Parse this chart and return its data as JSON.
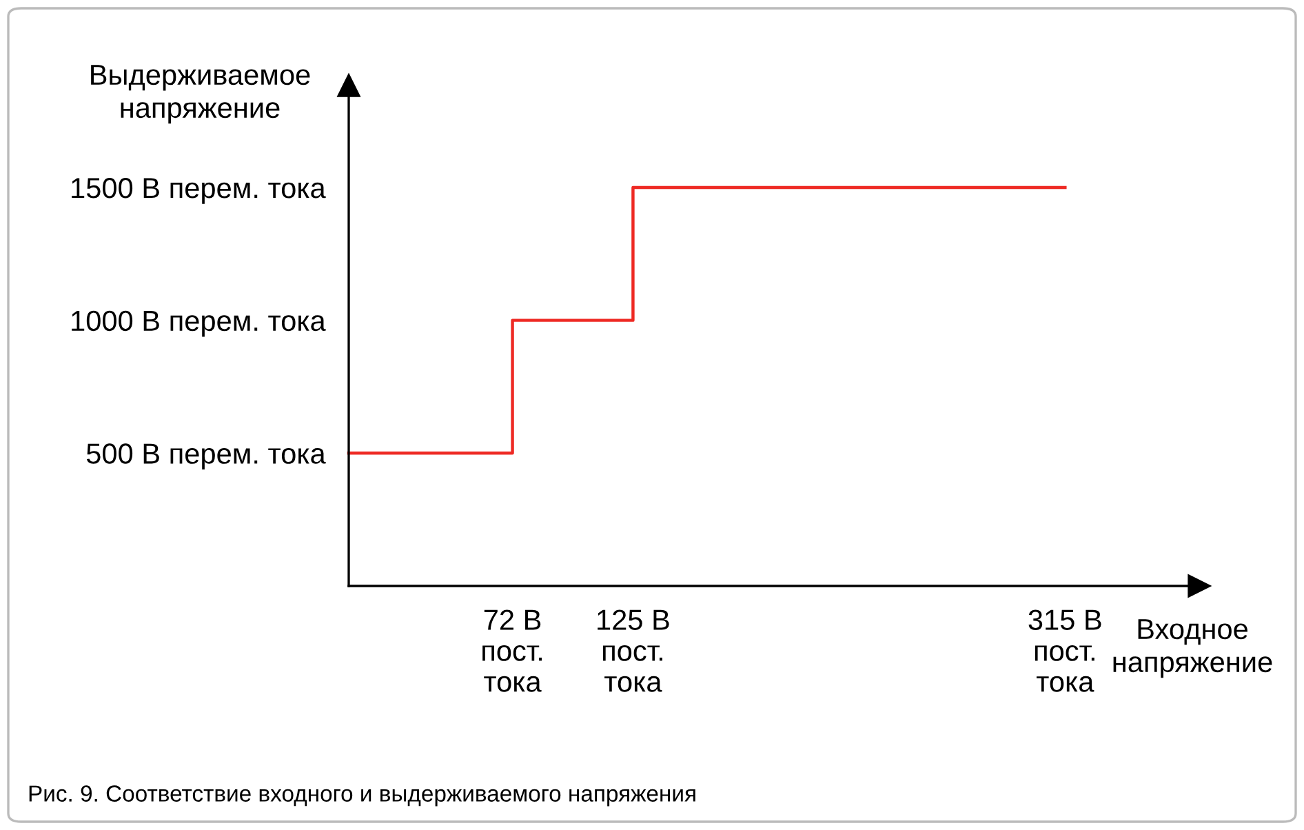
{
  "chart_data": {
    "type": "step",
    "x": [
      0,
      72,
      125,
      315
    ],
    "series": [
      {
        "color": "#ee2a24",
        "values": [
          500,
          1000,
          1500,
          1500
        ]
      }
    ],
    "xlabel": "Входное\nнапряжение",
    "ylabel": "Выдерживаемое\nнапряжение",
    "xlim": [
      0,
      374
    ],
    "ylim": [
      0,
      1884
    ],
    "xticks": [
      {
        "value": 72,
        "label": "72 В\nпост.\nтока"
      },
      {
        "value": 125,
        "label": "125 В\nпост.\nтока"
      },
      {
        "value": 315,
        "label": "315 В\nпост.\nтока"
      }
    ],
    "yticks": [
      {
        "value": 500,
        "label": "500 В перем. тока"
      },
      {
        "value": 1000,
        "label": "1000 В перем. тока"
      },
      {
        "value": 1500,
        "label": "1500 В перем. тока"
      }
    ],
    "grid": false,
    "annotations": [
      "Рис. 9. Соответствие входного и выдерживаемого напряжения"
    ]
  }
}
